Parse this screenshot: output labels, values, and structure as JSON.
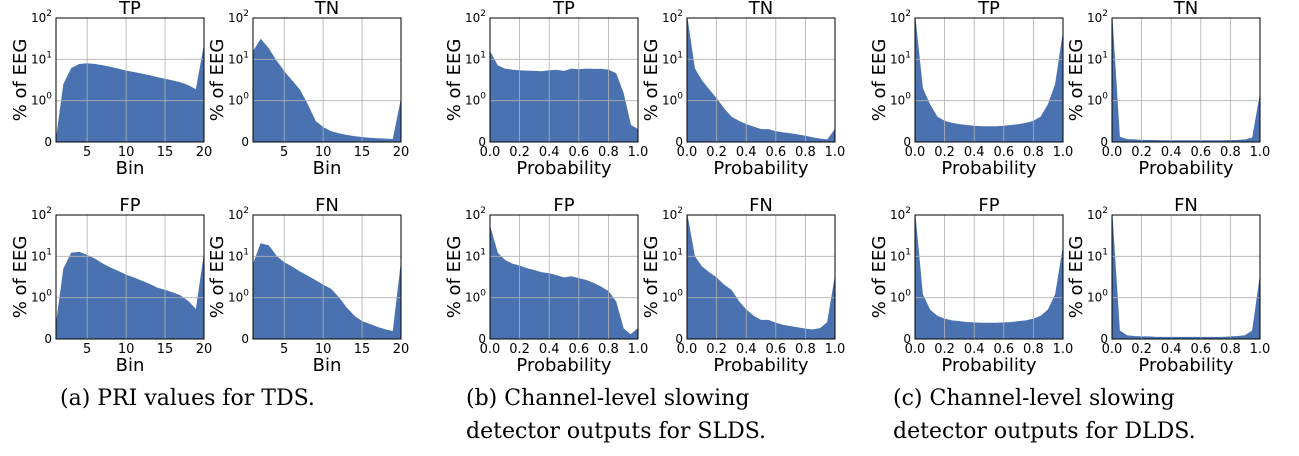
{
  "style": {
    "fill_color": "#4a72b0",
    "grid_color": "#b0b0b0",
    "axis_color": "#000000"
  },
  "y_axis_label": "% of EEG",
  "y_tick_labels": [
    "0",
    "10",
    "10",
    "10"
  ],
  "y_tick_exponents": [
    "",
    "0",
    "1",
    "2"
  ],
  "captions": [
    {
      "lines": [
        "(a) PRI values for TDS."
      ]
    },
    {
      "lines": [
        "(b) Channel-level slowing",
        "detector outputs for SLDS."
      ]
    },
    {
      "lines": [
        "(c) Channel-level slowing",
        "detector outputs for DLDS."
      ]
    }
  ],
  "chart_data": [
    {
      "type": "area",
      "title": "TP",
      "group": "a",
      "xlabel": "Bin",
      "yscale": "symlog",
      "xlim": [
        1,
        20
      ],
      "ylim": [
        0,
        100
      ],
      "xticks": [
        5,
        10,
        15,
        20
      ],
      "grid": true,
      "x": [
        1,
        2,
        3,
        4,
        5,
        6,
        7,
        8,
        9,
        10,
        11,
        12,
        13,
        14,
        15,
        16,
        17,
        18,
        19,
        20
      ],
      "y": [
        0.0,
        2.5,
        6.0,
        7.5,
        7.8,
        7.5,
        7.0,
        6.4,
        5.8,
        5.2,
        4.8,
        4.4,
        4.0,
        3.6,
        3.3,
        3.0,
        2.7,
        2.3,
        1.8,
        20.0
      ]
    },
    {
      "type": "area",
      "title": "TN",
      "group": "a",
      "xlabel": "Bin",
      "yscale": "symlog",
      "xlim": [
        1,
        20
      ],
      "ylim": [
        0,
        100
      ],
      "xticks": [
        5,
        10,
        15,
        20
      ],
      "grid": true,
      "x": [
        1,
        2,
        3,
        4,
        5,
        6,
        7,
        8,
        9,
        10,
        11,
        12,
        13,
        14,
        15,
        16,
        17,
        18,
        19,
        20
      ],
      "y": [
        15.0,
        30.0,
        18.0,
        9.0,
        5.0,
        3.0,
        1.8,
        0.9,
        0.5,
        0.35,
        0.25,
        0.2,
        0.16,
        0.13,
        0.11,
        0.09,
        0.08,
        0.07,
        0.06,
        1.0
      ]
    },
    {
      "type": "area",
      "title": "FP",
      "group": "a",
      "xlabel": "Bin",
      "yscale": "symlog",
      "xlim": [
        1,
        20
      ],
      "ylim": [
        0,
        100
      ],
      "xticks": [
        5,
        10,
        15,
        20
      ],
      "grid": true,
      "x": [
        1,
        2,
        3,
        4,
        5,
        6,
        7,
        8,
        9,
        10,
        11,
        12,
        13,
        14,
        15,
        16,
        17,
        18,
        19,
        20
      ],
      "y": [
        0.3,
        5.0,
        12.0,
        12.5,
        10.5,
        8.5,
        6.5,
        5.2,
        4.3,
        3.5,
        3.0,
        2.5,
        2.1,
        1.7,
        1.5,
        1.3,
        1.1,
        0.9,
        0.7,
        10.0
      ]
    },
    {
      "type": "area",
      "title": "FN",
      "group": "a",
      "xlabel": "Bin",
      "yscale": "symlog",
      "xlim": [
        1,
        20
      ],
      "ylim": [
        0,
        100
      ],
      "xticks": [
        5,
        10,
        15,
        20
      ],
      "grid": true,
      "x": [
        1,
        2,
        3,
        4,
        5,
        6,
        7,
        8,
        9,
        10,
        11,
        12,
        13,
        14,
        15,
        16,
        17,
        18,
        19,
        20
      ],
      "y": [
        6.0,
        20.0,
        18.0,
        10.0,
        7.0,
        5.5,
        4.2,
        3.3,
        2.6,
        2.0,
        1.6,
        1.0,
        0.75,
        0.55,
        0.42,
        0.35,
        0.28,
        0.22,
        0.18,
        6.0
      ]
    },
    {
      "type": "area",
      "title": "TP",
      "group": "b",
      "xlabel": "Probability",
      "yscale": "symlog",
      "xlim": [
        0,
        1
      ],
      "ylim": [
        0,
        100
      ],
      "xticks": [
        0.0,
        0.2,
        0.4,
        0.6,
        0.8,
        1.0
      ],
      "grid": true,
      "x": [
        0.0,
        0.05,
        0.1,
        0.15,
        0.2,
        0.25,
        0.3,
        0.35,
        0.4,
        0.45,
        0.5,
        0.55,
        0.6,
        0.65,
        0.7,
        0.75,
        0.8,
        0.85,
        0.9,
        0.95,
        1.0
      ],
      "y": [
        15.0,
        7.0,
        5.8,
        5.5,
        5.3,
        5.2,
        5.1,
        5.0,
        5.3,
        5.4,
        5.1,
        5.8,
        5.6,
        5.8,
        5.7,
        5.7,
        5.5,
        4.5,
        1.5,
        0.4,
        0.3
      ]
    },
    {
      "type": "area",
      "title": "TN",
      "group": "b",
      "xlabel": "Probability",
      "yscale": "symlog",
      "xlim": [
        0,
        1
      ],
      "ylim": [
        0,
        100
      ],
      "xticks": [
        0.0,
        0.2,
        0.4,
        0.6,
        0.8,
        1.0
      ],
      "grid": true,
      "x": [
        0.0,
        0.05,
        0.1,
        0.15,
        0.2,
        0.25,
        0.3,
        0.35,
        0.4,
        0.45,
        0.5,
        0.55,
        0.6,
        0.65,
        0.7,
        0.75,
        0.8,
        0.85,
        0.9,
        0.95,
        1.0
      ],
      "y": [
        100.0,
        6.0,
        3.0,
        1.8,
        1.1,
        0.8,
        0.6,
        0.5,
        0.42,
        0.36,
        0.3,
        0.3,
        0.25,
        0.22,
        0.2,
        0.17,
        0.14,
        0.1,
        0.07,
        0.05,
        0.3
      ]
    },
    {
      "type": "area",
      "title": "FP",
      "group": "b",
      "xlabel": "Probability",
      "yscale": "symlog",
      "xlim": [
        0,
        1
      ],
      "ylim": [
        0,
        100
      ],
      "xticks": [
        0.0,
        0.2,
        0.4,
        0.6,
        0.8,
        1.0
      ],
      "grid": true,
      "x": [
        0.0,
        0.05,
        0.1,
        0.15,
        0.2,
        0.25,
        0.3,
        0.35,
        0.4,
        0.45,
        0.5,
        0.55,
        0.6,
        0.65,
        0.7,
        0.75,
        0.8,
        0.85,
        0.9,
        0.95,
        1.0
      ],
      "y": [
        50.0,
        12.0,
        8.0,
        6.5,
        5.8,
        5.0,
        4.5,
        4.0,
        3.8,
        3.4,
        3.0,
        3.2,
        2.9,
        2.6,
        2.2,
        1.8,
        1.4,
        0.9,
        0.25,
        0.1,
        0.25
      ]
    },
    {
      "type": "area",
      "title": "FN",
      "group": "b",
      "xlabel": "Probability",
      "yscale": "symlog",
      "xlim": [
        0,
        1
      ],
      "ylim": [
        0,
        100
      ],
      "xticks": [
        0.0,
        0.2,
        0.4,
        0.6,
        0.8,
        1.0
      ],
      "grid": true,
      "x": [
        0.0,
        0.05,
        0.1,
        0.15,
        0.2,
        0.25,
        0.3,
        0.35,
        0.4,
        0.45,
        0.5,
        0.55,
        0.6,
        0.65,
        0.7,
        0.75,
        0.8,
        0.85,
        0.9,
        0.95,
        1.0
      ],
      "y": [
        100.0,
        10.0,
        5.5,
        4.0,
        3.0,
        2.0,
        1.5,
        0.9,
        0.7,
        0.55,
        0.45,
        0.45,
        0.38,
        0.33,
        0.3,
        0.27,
        0.24,
        0.22,
        0.25,
        0.4,
        3.0
      ]
    },
    {
      "type": "area",
      "title": "TP",
      "group": "c",
      "xlabel": "Probability",
      "yscale": "symlog",
      "xlim": [
        0,
        1
      ],
      "ylim": [
        0,
        100
      ],
      "xticks": [
        0.0,
        0.2,
        0.4,
        0.6,
        0.8,
        1.0
      ],
      "grid": true,
      "x": [
        0.0,
        0.05,
        0.1,
        0.15,
        0.2,
        0.25,
        0.3,
        0.35,
        0.4,
        0.45,
        0.5,
        0.55,
        0.6,
        0.65,
        0.7,
        0.75,
        0.8,
        0.85,
        0.9,
        0.95,
        1.0
      ],
      "y": [
        100.0,
        2.0,
        0.9,
        0.6,
        0.5,
        0.45,
        0.42,
        0.4,
        0.38,
        0.37,
        0.37,
        0.37,
        0.38,
        0.4,
        0.42,
        0.45,
        0.5,
        0.6,
        0.9,
        2.5,
        40.0
      ]
    },
    {
      "type": "area",
      "title": "TN",
      "group": "c",
      "xlabel": "Probability",
      "yscale": "symlog",
      "xlim": [
        0,
        1
      ],
      "ylim": [
        0,
        100
      ],
      "xticks": [
        0.0,
        0.2,
        0.4,
        0.6,
        0.8,
        1.0
      ],
      "grid": true,
      "x": [
        0.0,
        0.05,
        0.1,
        0.15,
        0.2,
        0.25,
        0.3,
        0.35,
        0.4,
        0.45,
        0.5,
        0.55,
        0.6,
        0.65,
        0.7,
        0.75,
        0.8,
        0.85,
        0.9,
        0.95,
        1.0
      ],
      "y": [
        100.0,
        0.12,
        0.06,
        0.05,
        0.04,
        0.04,
        0.035,
        0.03,
        0.03,
        0.03,
        0.03,
        0.03,
        0.03,
        0.03,
        0.03,
        0.03,
        0.035,
        0.04,
        0.05,
        0.1,
        1.3
      ]
    },
    {
      "type": "area",
      "title": "FP",
      "group": "c",
      "xlabel": "Probability",
      "yscale": "symlog",
      "xlim": [
        0,
        1
      ],
      "ylim": [
        0,
        100
      ],
      "xticks": [
        0.0,
        0.2,
        0.4,
        0.6,
        0.8,
        1.0
      ],
      "grid": true,
      "x": [
        0.0,
        0.05,
        0.1,
        0.15,
        0.2,
        0.25,
        0.3,
        0.35,
        0.4,
        0.45,
        0.5,
        0.55,
        0.6,
        0.65,
        0.7,
        0.75,
        0.8,
        0.85,
        0.9,
        0.95,
        1.0
      ],
      "y": [
        100.0,
        1.2,
        0.7,
        0.55,
        0.48,
        0.44,
        0.42,
        0.4,
        0.39,
        0.38,
        0.38,
        0.38,
        0.39,
        0.4,
        0.42,
        0.44,
        0.48,
        0.55,
        0.7,
        1.2,
        15.0
      ]
    },
    {
      "type": "area",
      "title": "FN",
      "group": "c",
      "xlabel": "Probability",
      "yscale": "symlog",
      "xlim": [
        0,
        1
      ],
      "ylim": [
        0,
        100
      ],
      "xticks": [
        0.0,
        0.2,
        0.4,
        0.6,
        0.8,
        1.0
      ],
      "grid": true,
      "x": [
        0.0,
        0.05,
        0.1,
        0.15,
        0.2,
        0.25,
        0.3,
        0.35,
        0.4,
        0.45,
        0.5,
        0.55,
        0.6,
        0.65,
        0.7,
        0.75,
        0.8,
        0.85,
        0.9,
        0.95,
        1.0
      ],
      "y": [
        100.0,
        0.2,
        0.08,
        0.06,
        0.05,
        0.05,
        0.04,
        0.04,
        0.04,
        0.04,
        0.04,
        0.04,
        0.04,
        0.04,
        0.04,
        0.04,
        0.05,
        0.06,
        0.08,
        0.2,
        3.0
      ]
    }
  ]
}
